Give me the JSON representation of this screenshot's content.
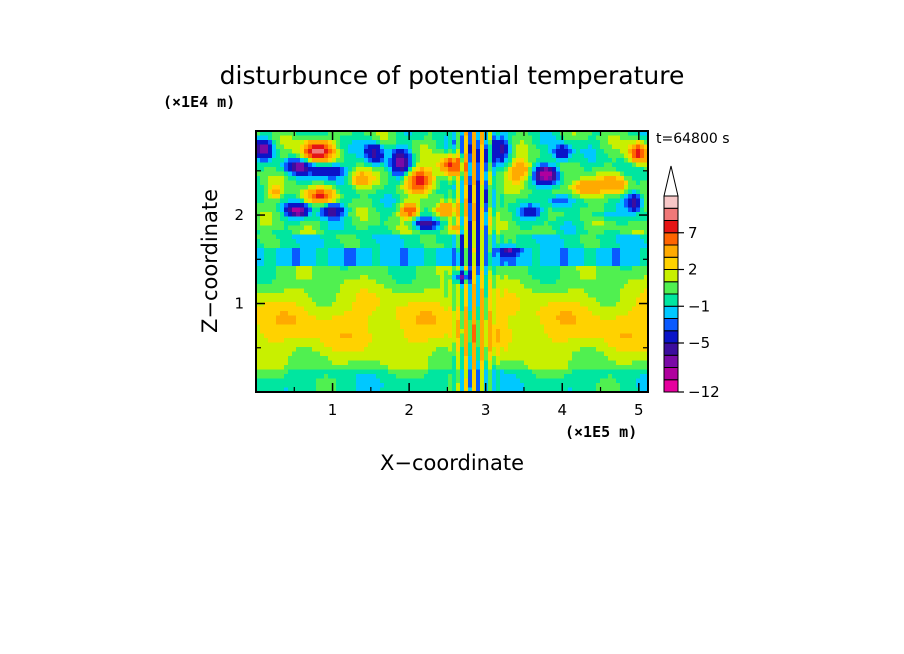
{
  "chart_data": {
    "type": "heatmap",
    "title": "disturbunce of potential temperature",
    "xlabel": "X−coordinate",
    "ylabel": "Z−coordinate",
    "x_unit": "(×1E5 m)",
    "y_unit": "(×1E4 m)",
    "time_label": "t=64800 s",
    "xlim": [
      0,
      5.12
    ],
    "ylim": [
      0,
      2.95
    ],
    "x_ticks": [
      {
        "value": 1,
        "label": "1"
      },
      {
        "value": 2,
        "label": "2"
      },
      {
        "value": 3,
        "label": "3"
      },
      {
        "value": 4,
        "label": "4"
      },
      {
        "value": 5,
        "label": "5"
      }
    ],
    "y_ticks": [
      {
        "value": 1,
        "label": "1"
      },
      {
        "value": 2,
        "label": "2"
      }
    ],
    "colorbar": {
      "levels": [
        -12,
        -10,
        -8,
        -6,
        -5,
        -3,
        -2,
        -1,
        0,
        1,
        2,
        3,
        5,
        7,
        9,
        11
      ],
      "colors": [
        "#e6009e",
        "#b0009e",
        "#7a0aa6",
        "#3c0d9e",
        "#0a14c8",
        "#0a5aff",
        "#00c8ff",
        "#00e6a0",
        "#50f050",
        "#c8f000",
        "#ffd200",
        "#ffaa00",
        "#ff6400",
        "#e61414",
        "#f07878",
        "#f8c8c8"
      ],
      "labels": [
        {
          "value": -12,
          "label": "−12"
        },
        {
          "value": -5,
          "label": "−5"
        },
        {
          "value": -1,
          "label": "−1"
        },
        {
          "value": 2,
          "label": "2"
        },
        {
          "value": 7,
          "label": "7"
        }
      ]
    }
  }
}
